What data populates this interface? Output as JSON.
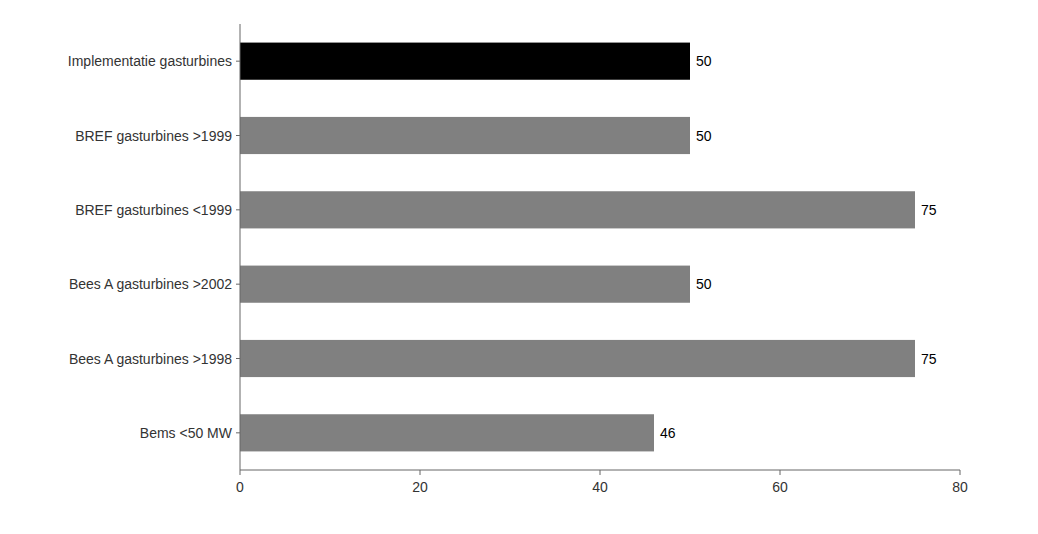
{
  "chart_data": {
    "type": "bar",
    "orientation": "horizontal",
    "categories": [
      "Bems <50 MW",
      "Bees A gasturbines >1998",
      "Bees A gasturbines >2002",
      "BREF gasturbines <1999",
      "BREF gasturbines >1999",
      "Implementatie gasturbines"
    ],
    "values": [
      46,
      75,
      50,
      75,
      50,
      50
    ],
    "colors": [
      "#808080",
      "#808080",
      "#808080",
      "#808080",
      "#808080",
      "#000000"
    ],
    "xlim": [
      0,
      80
    ],
    "xticks": [
      0,
      20,
      40,
      60,
      80
    ],
    "data_labels": true,
    "grid": false
  }
}
